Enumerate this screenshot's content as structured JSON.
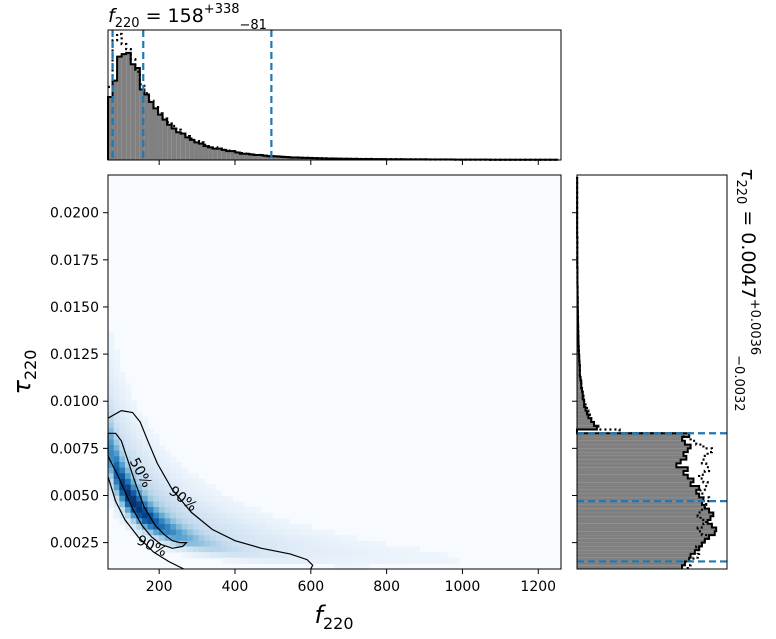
{
  "chart_data": [
    {
      "type": "histogram",
      "panel": "top-marginal",
      "variable": "f_220",
      "title_value": "158",
      "title_plus": "+338",
      "title_minus": "−81",
      "xlim": [
        65,
        1260
      ],
      "bin_edges": [
        65,
        77,
        89,
        101,
        113,
        125,
        137,
        149,
        161,
        173,
        185,
        197,
        209,
        221,
        233,
        245,
        257,
        269,
        281,
        293,
        305,
        317,
        329,
        341,
        353,
        365,
        377,
        389,
        401,
        413,
        425,
        437,
        449,
        461,
        473,
        485,
        497,
        509,
        521,
        533,
        545,
        557,
        569,
        581,
        593,
        605,
        617,
        629,
        641,
        653,
        665,
        677,
        689,
        701,
        713,
        725,
        737,
        749,
        761,
        773,
        785,
        797,
        809,
        821,
        833,
        845,
        857,
        869,
        881,
        893,
        905,
        917,
        929,
        941,
        953,
        965,
        977,
        989,
        1001,
        1013,
        1025,
        1037,
        1049,
        1061,
        1073,
        1085,
        1097,
        1109,
        1121,
        1133,
        1145,
        1157,
        1169,
        1181,
        1193,
        1205,
        1217,
        1229,
        1241,
        1253
      ],
      "counts": [
        0.5,
        0.63,
        0.82,
        0.84,
        0.85,
        0.76,
        0.73,
        0.56,
        0.52,
        0.46,
        0.41,
        0.36,
        0.32,
        0.28,
        0.25,
        0.22,
        0.21,
        0.18,
        0.16,
        0.14,
        0.13,
        0.11,
        0.1,
        0.09,
        0.09,
        0.08,
        0.07,
        0.07,
        0.06,
        0.05,
        0.05,
        0.045,
        0.04,
        0.04,
        0.035,
        0.03,
        0.03,
        0.028,
        0.025,
        0.023,
        0.02,
        0.02,
        0.018,
        0.017,
        0.016,
        0.015,
        0.014,
        0.013,
        0.012,
        0.012,
        0.011,
        0.01,
        0.01,
        0.009,
        0.009,
        0.008,
        0.008,
        0.008,
        0.007,
        0.007,
        0.007,
        0.006,
        0.006,
        0.006,
        0.006,
        0.005,
        0.005,
        0.005,
        0.005,
        0.005,
        0.004,
        0.004,
        0.004,
        0.004,
        0.004,
        0.004,
        0.003,
        0.003,
        0.003,
        0.003,
        0.003,
        0.003,
        0.003,
        0.003,
        0.002,
        0.002,
        0.002,
        0.002,
        0.002,
        0.002,
        0.002,
        0.002,
        0.002,
        0.002,
        0.002,
        0.002,
        0.002,
        0.002,
        0.002
      ],
      "counts_prior": [
        0.58,
        0.95,
        1.0,
        0.92,
        0.88,
        0.8,
        0.7,
        0.6,
        0.53,
        0.47,
        0.42,
        0.37,
        0.33,
        0.3,
        0.27,
        0.24,
        0.21,
        0.19,
        0.17,
        0.15,
        0.14,
        0.12,
        0.11,
        0.1,
        0.09,
        0.08,
        0.075,
        0.07,
        0.06,
        0.055,
        0.05,
        0.045,
        0.04,
        0.04,
        0.035,
        0.03,
        0.03,
        0.028,
        0.025,
        0.023,
        0.02,
        0.02,
        0.018,
        0.017,
        0.016,
        0.015,
        0.014,
        0.013,
        0.012,
        0.012,
        0.011,
        0.01,
        0.01,
        0.009,
        0.009,
        0.008,
        0.008,
        0.008,
        0.007,
        0.007,
        0.007,
        0.006,
        0.006,
        0.006,
        0.006,
        0.005,
        0.005,
        0.005,
        0.005,
        0.005,
        0.004,
        0.004,
        0.004,
        0.004,
        0.004,
        0.004,
        0.003,
        0.003,
        0.003,
        0.003,
        0.003,
        0.003,
        0.003,
        0.003,
        0.002,
        0.002,
        0.002,
        0.002,
        0.002,
        0.002,
        0.002,
        0.002,
        0.002,
        0.002,
        0.002,
        0.002,
        0.002,
        0.002,
        0.002
      ],
      "quantile_lines": [
        77,
        158,
        496
      ]
    },
    {
      "type": "heatmap",
      "panel": "joint",
      "xlabel": "f",
      "xlabel_sub": "220",
      "ylabel": "τ",
      "ylabel_sub": "220",
      "xlim": [
        65,
        1260
      ],
      "ylim": [
        0.0011,
        0.022
      ],
      "xticks": [
        200,
        400,
        600,
        800,
        1000,
        1200
      ],
      "xtick_labels": [
        "200",
        "400",
        "600",
        "800",
        "1000",
        "1200"
      ],
      "yticks": [
        0.0025,
        0.005,
        0.0075,
        0.01,
        0.0125,
        0.015,
        0.0175,
        0.02
      ],
      "ytick_labels": [
        "0.0025",
        "0.0050",
        "0.0075",
        "0.0100",
        "0.0125",
        "0.0150",
        "0.0175",
        "0.0200"
      ],
      "colormap": "Blues",
      "contours": [
        {
          "label": "50%",
          "points": [
            [
              65,
              0.0083
            ],
            [
              85,
              0.0083
            ],
            [
              100,
              0.0079
            ],
            [
              115,
              0.007
            ],
            [
              135,
              0.0058
            ],
            [
              160,
              0.0044
            ],
            [
              190,
              0.0034
            ],
            [
              215,
              0.0029
            ],
            [
              235,
              0.0026
            ],
            [
              255,
              0.0025
            ],
            [
              272,
              0.0025
            ],
            [
              262,
              0.0023
            ],
            [
              235,
              0.0022
            ],
            [
              205,
              0.0024
            ],
            [
              180,
              0.0028
            ],
            [
              155,
              0.0034
            ],
            [
              130,
              0.0043
            ],
            [
              110,
              0.0052
            ],
            [
              90,
              0.0061
            ],
            [
              72,
              0.0068
            ],
            [
              65,
              0.0071
            ]
          ]
        },
        {
          "label": "90%",
          "points": [
            [
              65,
              0.0091
            ],
            [
              100,
              0.0095
            ],
            [
              130,
              0.0094
            ],
            [
              150,
              0.0089
            ],
            [
              170,
              0.0079
            ],
            [
              195,
              0.0067
            ],
            [
              235,
              0.0053
            ],
            [
              285,
              0.0041
            ],
            [
              340,
              0.0032
            ],
            [
              400,
              0.0026
            ],
            [
              470,
              0.0022
            ],
            [
              545,
              0.0019
            ],
            [
              590,
              0.0016
            ],
            [
              605,
              0.0013
            ],
            [
              600,
              0.0011
            ]
          ],
          "open": true
        },
        {
          "label": "90%",
          "points": [
            [
              65,
              0.006
            ],
            [
              85,
              0.0047
            ],
            [
              110,
              0.0037
            ],
            [
              145,
              0.0028
            ],
            [
              185,
              0.002
            ],
            [
              225,
              0.0015
            ],
            [
              265,
              0.0011
            ]
          ],
          "open": true
        }
      ],
      "contour_labels": [
        {
          "text": "50%",
          "x": 150,
          "y": 0.0062,
          "angle": 62
        },
        {
          "text": "90%",
          "x": 262,
          "y": 0.0048,
          "angle": 38
        },
        {
          "text": "90%",
          "x": 180,
          "y": 0.0023,
          "angle": 25
        }
      ]
    },
    {
      "type": "histogram",
      "panel": "right-marginal",
      "orientation": "horizontal",
      "variable": "tau_220",
      "title_value": "0.0047",
      "title_plus": "+0.0036",
      "title_minus": "−0.0032",
      "ylim": [
        0.0011,
        0.022
      ],
      "bin_edges": [
        0.0011,
        0.0013,
        0.0015,
        0.0017,
        0.0019,
        0.0021,
        0.0023,
        0.0025,
        0.0027,
        0.0029,
        0.0031,
        0.0033,
        0.0035,
        0.0037,
        0.0039,
        0.0041,
        0.0043,
        0.0045,
        0.0047,
        0.0049,
        0.0051,
        0.0053,
        0.0055,
        0.0057,
        0.0059,
        0.0061,
        0.0063,
        0.0065,
        0.0067,
        0.0069,
        0.0071,
        0.0073,
        0.0075,
        0.0077,
        0.0079,
        0.0081,
        0.0083,
        0.0085,
        0.0087,
        0.0089,
        0.0091,
        0.0093,
        0.0095,
        0.0097,
        0.0099,
        0.0101,
        0.0103,
        0.0105,
        0.0107,
        0.0109,
        0.0111,
        0.0113,
        0.0115,
        0.0117,
        0.0119,
        0.0121,
        0.0123,
        0.0125,
        0.0127,
        0.0129,
        0.0131,
        0.0133,
        0.0135,
        0.0137,
        0.0139,
        0.0141,
        0.0143,
        0.0145,
        0.0147,
        0.0149,
        0.0151,
        0.0153,
        0.0155,
        0.0157,
        0.0159,
        0.0161,
        0.0163,
        0.0165,
        0.0167,
        0.0169,
        0.0171,
        0.0173,
        0.0175,
        0.0177,
        0.0179,
        0.0181,
        0.0183,
        0.0185,
        0.0187,
        0.0189,
        0.0191,
        0.0193,
        0.0195,
        0.0197,
        0.0199,
        0.0201,
        0.0203,
        0.0205,
        0.0207,
        0.0209,
        0.0211,
        0.0213,
        0.0215,
        0.0217,
        0.0219
      ],
      "counts": [
        0.74,
        0.76,
        0.79,
        0.8,
        0.83,
        0.86,
        0.88,
        0.9,
        0.93,
        0.97,
        0.98,
        0.95,
        0.92,
        0.94,
        0.96,
        0.93,
        0.9,
        0.88,
        0.89,
        0.86,
        0.84,
        0.86,
        0.8,
        0.82,
        0.78,
        0.75,
        0.78,
        0.7,
        0.73,
        0.77,
        0.75,
        0.78,
        0.8,
        0.76,
        0.74,
        0.79,
        0.0,
        0.14,
        0.12,
        0.1,
        0.08,
        0.07,
        0.06,
        0.05,
        0.05,
        0.04,
        0.04,
        0.035,
        0.03,
        0.03,
        0.025,
        0.02,
        0.02,
        0.02,
        0.018,
        0.016,
        0.015,
        0.013,
        0.012,
        0.011,
        0.01,
        0.01,
        0.009,
        0.008,
        0.008,
        0.007,
        0.007,
        0.006,
        0.006,
        0.005,
        0.005,
        0.005,
        0.004,
        0.004,
        0.004,
        0.003,
        0.003,
        0.003,
        0.003,
        0.003,
        0.002,
        0.002,
        0.002,
        0.002,
        0.002,
        0.002,
        0.002,
        0.002,
        0.001,
        0.001,
        0.001,
        0.001,
        0.001,
        0.001,
        0.001,
        0.001,
        0.001,
        0.001,
        0.001,
        0.001,
        0.001,
        0.001,
        0.001,
        0.001
      ],
      "counts_prior": [
        0.78,
        0.8,
        0.82,
        0.85,
        0.86,
        0.84,
        0.87,
        0.9,
        0.92,
        0.88,
        0.85,
        0.89,
        0.91,
        0.87,
        0.85,
        0.88,
        0.9,
        0.91,
        0.93,
        0.89,
        0.87,
        0.9,
        0.92,
        0.89,
        0.86,
        0.9,
        0.93,
        0.91,
        0.88,
        0.9,
        0.92,
        0.95,
        0.89,
        0.84,
        0.8,
        0.75,
        0.3,
        0.15,
        0.12,
        0.1,
        0.09,
        0.08,
        0.07,
        0.06,
        0.05,
        0.045,
        0.04,
        0.035,
        0.03,
        0.03,
        0.025,
        0.02,
        0.02,
        0.02,
        0.018,
        0.016,
        0.015,
        0.013,
        0.012,
        0.011,
        0.01,
        0.01,
        0.009,
        0.008,
        0.008,
        0.007,
        0.007,
        0.006,
        0.006,
        0.005,
        0.005,
        0.005,
        0.004,
        0.004,
        0.004,
        0.003,
        0.003,
        0.003,
        0.003,
        0.003,
        0.002,
        0.002,
        0.002,
        0.002,
        0.002,
        0.002,
        0.002,
        0.002,
        0.001,
        0.001,
        0.001,
        0.001,
        0.001,
        0.001,
        0.001,
        0.001,
        0.001,
        0.001,
        0.001,
        0.001,
        0.001,
        0.001,
        0.001,
        0.001
      ],
      "quantile_lines": [
        0.0015,
        0.0047,
        0.0083
      ]
    }
  ],
  "colors": {
    "hist_fill": "#808080",
    "hist_edge": "#000000",
    "quantile_line": "#1f77b4",
    "contour": "#000000"
  }
}
